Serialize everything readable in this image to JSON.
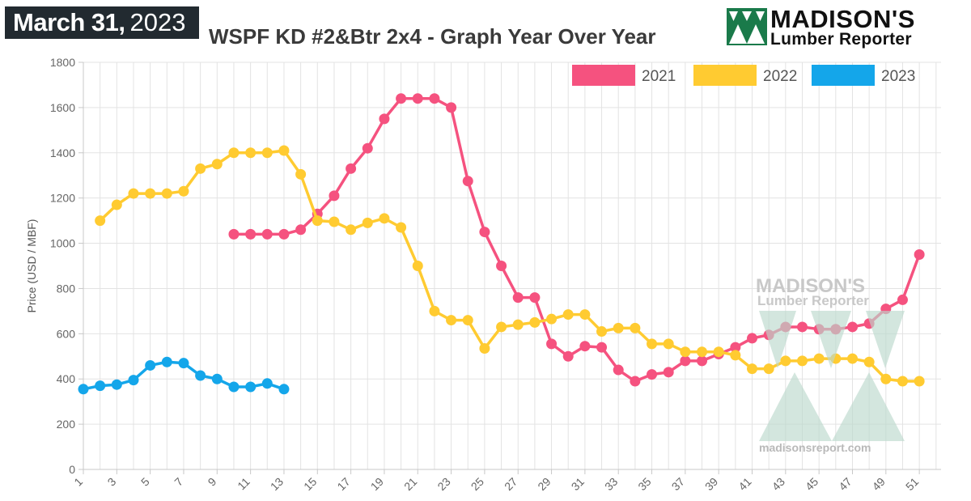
{
  "date_badge": {
    "month_day": "March 31,",
    "year": "2023"
  },
  "title": "WSPF KD #2&Btr 2x4 - Graph Year Over Year",
  "logo": {
    "word": "MADISON'S",
    "sub": "Lumber Reporter"
  },
  "watermark": {
    "word": "MADISON'S",
    "sub": "Lumber Reporter",
    "url": "madisonsreport.com"
  },
  "colors": {
    "s2021": "#f5527f",
    "s2022": "#ffcb31",
    "s2023": "#14a6ea",
    "grid": "#e3e3e3",
    "logo_green": "#1a7a4a"
  },
  "chart_data": {
    "type": "line",
    "title": "WSPF KD #2&Btr 2x4 - Graph Year Over Year",
    "xlabel": "",
    "ylabel": "Price (USD / MBF)",
    "xlim": [
      1,
      52
    ],
    "ylim": [
      0,
      1800
    ],
    "y_ticks": [
      0,
      200,
      400,
      600,
      800,
      1000,
      1200,
      1400,
      1600,
      1800
    ],
    "x_ticks": [
      1,
      3,
      5,
      7,
      9,
      11,
      13,
      15,
      17,
      19,
      21,
      23,
      25,
      27,
      29,
      31,
      33,
      35,
      37,
      39,
      41,
      43,
      45,
      47,
      49,
      51
    ],
    "legend_position": "top-right",
    "grid": true,
    "series": [
      {
        "name": "2021",
        "color": "#f5527f",
        "x": [
          10,
          11,
          12,
          13,
          14,
          15,
          16,
          17,
          18,
          19,
          20,
          21,
          22,
          23,
          24,
          25,
          26,
          27,
          28,
          29,
          30,
          31,
          32,
          33,
          34,
          35,
          36,
          37,
          38,
          39,
          40,
          41,
          42,
          43,
          44,
          45,
          46,
          47,
          48,
          49,
          50,
          51
        ],
        "values": [
          1040,
          1040,
          1040,
          1040,
          1060,
          1130,
          1210,
          1330,
          1420,
          1550,
          1640,
          1640,
          1640,
          1600,
          1275,
          1050,
          900,
          760,
          760,
          555,
          500,
          545,
          540,
          440,
          390,
          420,
          430,
          480,
          480,
          510,
          540,
          580,
          595,
          630,
          630,
          620,
          620,
          630,
          645,
          710,
          750,
          950
        ]
      },
      {
        "name": "2022",
        "color": "#ffcb31",
        "x": [
          2,
          3,
          4,
          5,
          6,
          7,
          8,
          9,
          10,
          11,
          12,
          13,
          14,
          15,
          16,
          17,
          18,
          19,
          20,
          21,
          22,
          23,
          24,
          25,
          26,
          27,
          28,
          29,
          30,
          31,
          32,
          33,
          34,
          35,
          36,
          37,
          38,
          39,
          40,
          41,
          42,
          43,
          44,
          45,
          46,
          47,
          48,
          49,
          50,
          51
        ],
        "values": [
          1100,
          1170,
          1220,
          1220,
          1220,
          1230,
          1330,
          1350,
          1400,
          1400,
          1400,
          1410,
          1305,
          1100,
          1095,
          1060,
          1090,
          1110,
          1070,
          900,
          700,
          660,
          660,
          535,
          630,
          640,
          650,
          665,
          685,
          685,
          610,
          625,
          625,
          555,
          555,
          520,
          520,
          520,
          505,
          445,
          445,
          480,
          480,
          490,
          490,
          490,
          475,
          400,
          390,
          390
        ]
      },
      {
        "name": "2023",
        "color": "#14a6ea",
        "x": [
          1,
          2,
          3,
          4,
          5,
          6,
          7,
          8,
          9,
          10,
          11,
          12,
          13
        ],
        "values": [
          355,
          370,
          375,
          395,
          460,
          475,
          470,
          415,
          400,
          365,
          365,
          380,
          355
        ]
      }
    ]
  }
}
